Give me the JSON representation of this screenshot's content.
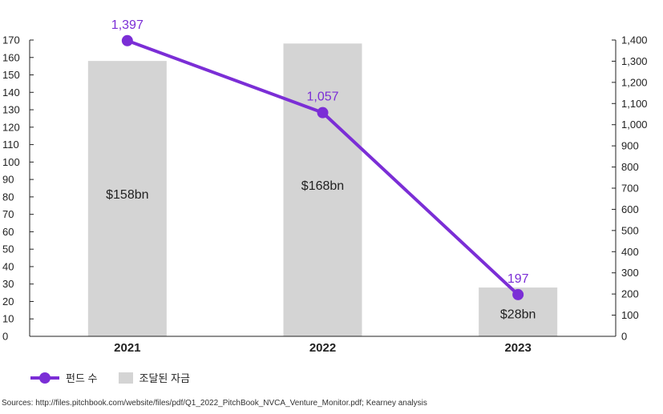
{
  "colors": {
    "line": "#7b2ed6",
    "bar": "#d4d4d4",
    "axis": "#222222"
  },
  "chart_data": {
    "type": "bar+line",
    "categories": [
      "2021",
      "2022",
      "2023"
    ],
    "series": [
      {
        "name": "조달된 자금",
        "type": "bar",
        "axis": "left",
        "values": [
          158,
          168,
          28
        ],
        "labels": [
          "$158bn",
          "$168bn",
          "$28bn"
        ]
      },
      {
        "name": "펀드 수",
        "type": "line",
        "axis": "right",
        "values": [
          1397,
          1057,
          197
        ],
        "labels": [
          "1,397",
          "1,057",
          "197"
        ]
      }
    ],
    "y_left": {
      "min": 0,
      "max": 170,
      "step": 10
    },
    "y_right": {
      "min": 0,
      "max": 1400,
      "step": 100
    },
    "grid": false,
    "legend": "bottom-left"
  },
  "legend": {
    "line_label": "펀드 수",
    "bar_label": "조달된 자금"
  },
  "source": "Sources: http://files.pitchbook.com/website/files/pdf/Q1_2022_PitchBook_NVCA_Venture_Monitor.pdf; Kearney analysis"
}
